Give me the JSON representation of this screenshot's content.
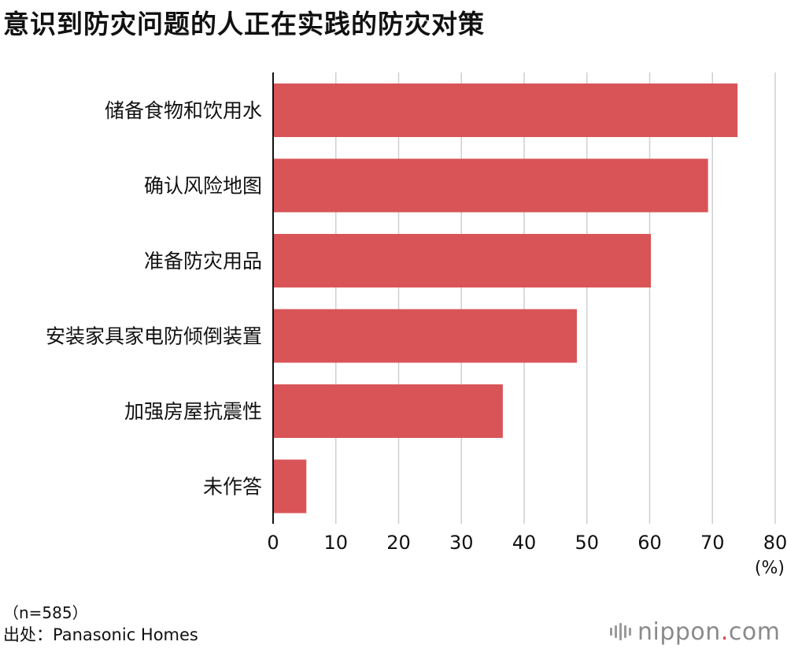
{
  "title": "意识到防灾问题的人正在实践的防灾对策",
  "chart_data": {
    "type": "bar",
    "orientation": "horizontal",
    "title": "意识到防灾问题的人正在实践的防灾对策",
    "categories": [
      "储备食物和饮用水",
      "确认风险地图",
      "准备防灾用品",
      "安装家具家电防倾倒装置",
      "加强房屋抗震性",
      "未作答"
    ],
    "values": [
      74.0,
      69.3,
      60.2,
      48.4,
      36.6,
      5.3
    ],
    "xlim": [
      0,
      80
    ],
    "xticks": [
      0,
      10,
      20,
      30,
      40,
      50,
      60,
      70,
      80
    ],
    "xlabel": "(%)",
    "ylabel": "",
    "grid": true,
    "bar_color": "#d95457"
  },
  "notes": {
    "sample": "（n=585）",
    "source": "出处：Panasonic Homes"
  },
  "logo": {
    "name": "nippon",
    "dot": ".",
    "tld": "com",
    "accent": "#d9474c"
  }
}
